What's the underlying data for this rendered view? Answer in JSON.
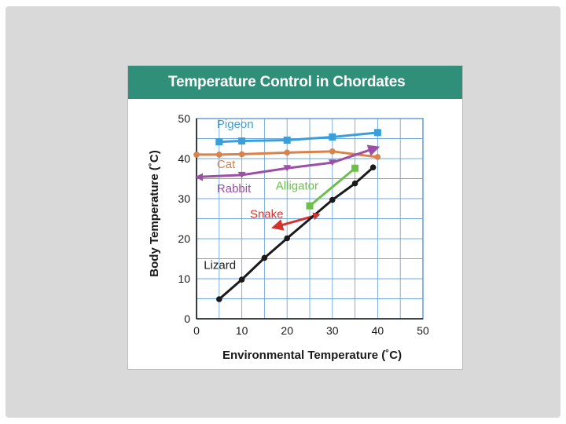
{
  "chart_data": {
    "type": "line",
    "title": "Temperature Control in Chordates",
    "xlabel": "Environmental Temperature (˚C)",
    "ylabel": "Body Temperature (˚C)",
    "xlim": [
      0,
      50
    ],
    "ylim": [
      0,
      50
    ],
    "xticks": [
      0,
      10,
      20,
      30,
      40,
      50
    ],
    "yticks": [
      0,
      10,
      20,
      30,
      40,
      50
    ],
    "grid": true,
    "series": [
      {
        "name": "Pigeon",
        "color": "#3a9fd8",
        "marker": "square",
        "arrow": false,
        "x": [
          5,
          10,
          20,
          30,
          40
        ],
        "y": [
          44.2,
          44.4,
          44.6,
          45.4,
          46.5
        ]
      },
      {
        "name": "Cat",
        "color": "#d9824a",
        "marker": "circle",
        "arrow": false,
        "x": [
          0,
          5,
          10,
          20,
          30,
          40
        ],
        "y": [
          41.0,
          41.0,
          41.1,
          41.5,
          41.8,
          40.4
        ]
      },
      {
        "name": "Rabbit",
        "color": "#9b4fa5",
        "marker": "triangle",
        "arrow": "start-end",
        "x": [
          0,
          10,
          20,
          30,
          40
        ],
        "y": [
          35.4,
          35.9,
          37.6,
          39.0,
          42.8
        ]
      },
      {
        "name": "Alligator",
        "color": "#6cc04a",
        "marker": "square",
        "arrow": false,
        "x": [
          25,
          35
        ],
        "y": [
          28.2,
          37.6
        ]
      },
      {
        "name": "Snake",
        "color": "#d2352f",
        "marker": "none",
        "arrow": "both",
        "x": [
          17,
          27
        ],
        "y": [
          22.8,
          26.0
        ]
      },
      {
        "name": "Lizard",
        "color": "#1a1a1a",
        "marker": "circle",
        "arrow": false,
        "x": [
          5,
          10,
          15,
          20,
          30,
          35,
          39
        ],
        "y": [
          4.9,
          9.8,
          15.2,
          20.1,
          29.7,
          33.8,
          37.8
        ]
      }
    ],
    "labels": [
      {
        "series": "Pigeon",
        "text": "Pigeon",
        "x": 4.5,
        "y": 47.6
      },
      {
        "series": "Cat",
        "text": "Cat",
        "x": 4.5,
        "y": 37.6
      },
      {
        "series": "Rabbit",
        "text": "Rabbit",
        "x": 4.5,
        "y": 31.6
      },
      {
        "series": "Alligator",
        "text": "Alligator",
        "x": 17.5,
        "y": 32.3
      },
      {
        "series": "Snake",
        "text": "Snake",
        "x": 11.8,
        "y": 25.2
      },
      {
        "series": "Lizard",
        "text": "Lizard",
        "x": 1.6,
        "y": 12.5
      }
    ]
  }
}
